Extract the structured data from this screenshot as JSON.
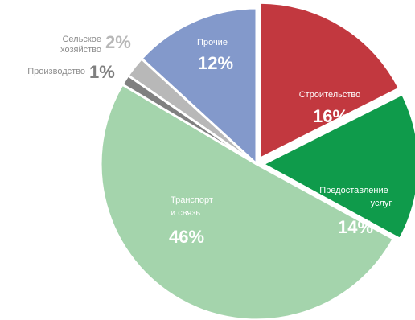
{
  "chart_data": {
    "type": "pie",
    "slices": [
      {
        "label": "Строительство",
        "value": 16,
        "pct_label": "16%",
        "color": "#c2383f"
      },
      {
        "label": "Предоставление услуг",
        "value": 14,
        "pct_label": "14%",
        "color": "#0f9b4b"
      },
      {
        "label": "Транспорт и связь",
        "value": 46,
        "pct_label": "46%",
        "color": "#a4d4ac"
      },
      {
        "label": "Производство",
        "value": 1,
        "pct_label": "1%",
        "color": "#808080"
      },
      {
        "label": "Сельское хозяйство",
        "value": 2,
        "pct_label": "2%",
        "color": "#b8b8b8"
      },
      {
        "label": "Прочие",
        "value": 12,
        "pct_label": "12%",
        "color": "#8399cb"
      }
    ],
    "start_angle": "top",
    "direction": "clockwise",
    "legend": "none",
    "exploded_slices": [
      "Строительство",
      "Предоставление услуг"
    ]
  }
}
